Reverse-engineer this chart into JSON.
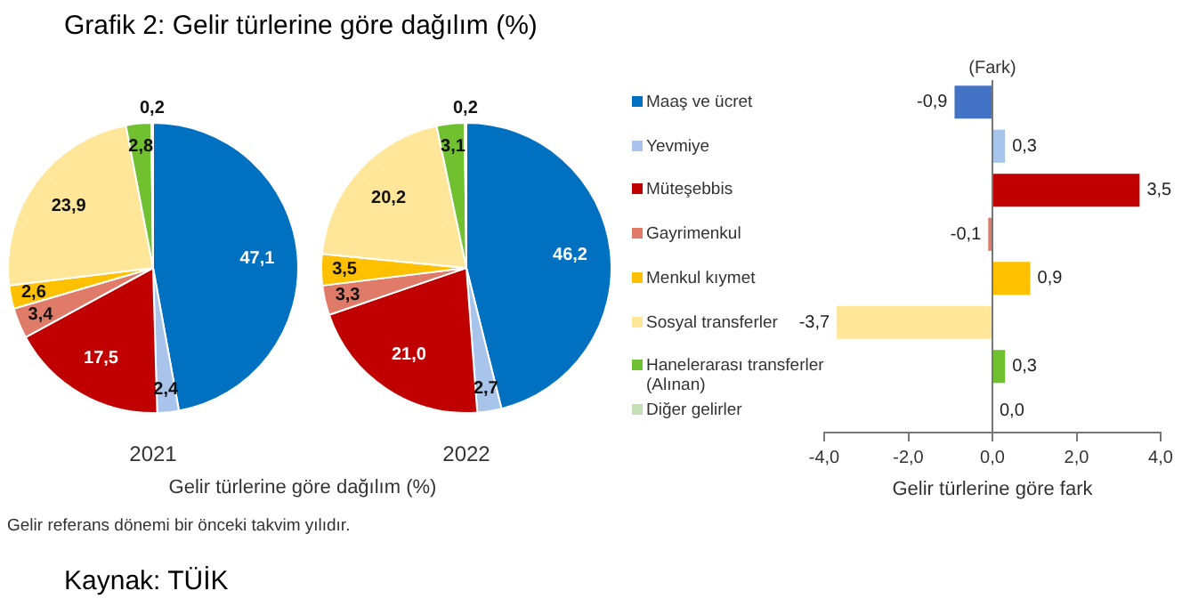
{
  "chart_data": [
    {
      "type": "other",
      "title": "Grafik 2: Gelir türlerine göre dağılım (%)",
      "annotations": [
        "Gelir türlerine göre dağılım (%)",
        "Gelir referans dönemi bir önceki takvim yılıdır.",
        "Kaynak: TÜİK"
      ]
    },
    {
      "type": "pie",
      "title": "2021",
      "categories": [
        null,
        null,
        null,
        null,
        null,
        null,
        null,
        null
      ],
      "values": [
        47.1,
        2.4,
        17.5,
        3.4,
        2.6,
        23.9,
        2.8,
        0.2
      ],
      "colors": [
        "#0070c0",
        "#a9c4eb",
        "#c00000",
        "#e07b6a",
        "#ffc000",
        "#ffe699",
        "#70c030",
        "#c5e0b4"
      ],
      "value_labels": [
        "47,1",
        "2,4",
        "17,5",
        "3,4",
        "2,6",
        "23,9",
        "2,8",
        "0,2"
      ],
      "legend": false
    },
    {
      "type": "pie",
      "title": "2022",
      "categories": [
        "Maaş ve ücret",
        "Yevmiye",
        "Müteşebbis",
        "Gayrimenkul",
        "Menkul kıymet",
        "Sosyal transferler",
        "Hanelerarası transferler (Alınan)",
        "Diğer gelirler"
      ],
      "values": [
        46.2,
        2.7,
        21.0,
        3.3,
        3.5,
        20.2,
        3.1,
        0.2
      ],
      "colors": [
        "#0070c0",
        "#a9c4eb",
        "#c00000",
        "#e07b6a",
        "#ffc000",
        "#ffe699",
        "#70c030",
        "#c5e0b4"
      ],
      "value_labels": [
        "46,2",
        "2,7",
        "21,0",
        "3,3",
        "3,5",
        "20,2",
        "3,1",
        "0,2"
      ],
      "legend": "right"
    },
    {
      "type": "bar",
      "orientation": "horizontal",
      "xlabel": "Gelir türlerine göre fark",
      "annotations": [
        "(Fark)"
      ],
      "categories": [
        null,
        null,
        null,
        null,
        null,
        null,
        null,
        null
      ],
      "values": [
        -0.9,
        0.3,
        3.5,
        -0.1,
        0.9,
        -3.7,
        0.3,
        0.0
      ],
      "colors": [
        "#4472c4",
        "#a9c4eb",
        "#c00000",
        "#e07b6a",
        "#ffc000",
        "#ffe699",
        "#70c030",
        "#c5e0b4"
      ],
      "value_labels": [
        "-0,9",
        "0,3",
        "3,5",
        "-0,1",
        "0,9",
        "-3,7",
        "0,3",
        "0,0"
      ],
      "xlim": [
        -4,
        4
      ],
      "xticks": [
        {
          "value": -4,
          "label": "-4,0"
        },
        {
          "value": -2,
          "label": "-2,0"
        },
        {
          "value": 0,
          "label": "0,0"
        },
        {
          "value": 2,
          "label": "2,0"
        },
        {
          "value": 4,
          "label": "4,0"
        }
      ],
      "ref_lines": [
        {
          "axis": "x",
          "value": 0,
          "color": "#777777"
        }
      ],
      "legend": false
    }
  ]
}
